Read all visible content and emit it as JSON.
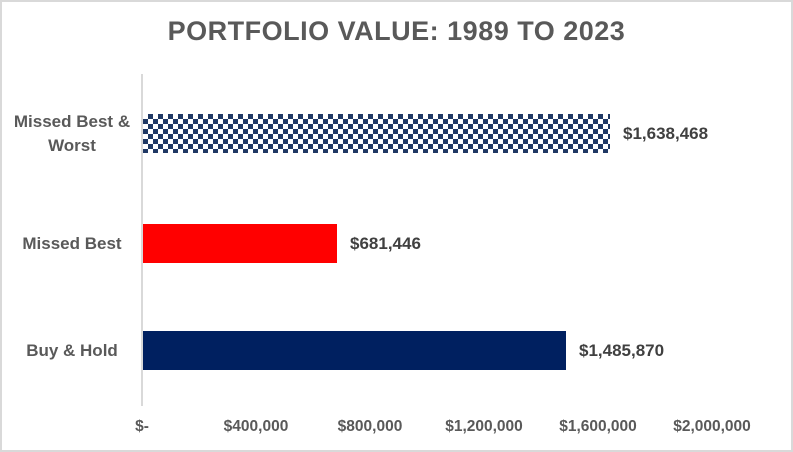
{
  "colors": {
    "border": "#d9d9d9",
    "axis_line": "#d9d9d9",
    "title_text": "#595959",
    "category_text": "#595959",
    "value_text": "#404040",
    "navy": "#002060",
    "checker_navy": "#1f3864",
    "red": "#ff0000"
  },
  "chart_data": {
    "type": "bar",
    "orientation": "horizontal",
    "title": "PORTFOLIO VALUE: 1989 TO 2023",
    "categories": [
      "Missed Best & Worst",
      "Missed Best",
      "Buy & Hold"
    ],
    "values": [
      1638468,
      681446,
      1485870
    ],
    "value_labels": [
      "$1,638,468",
      "$681,446",
      "$1,485,870"
    ],
    "bar_styles": [
      "checker-navy",
      "solid-red",
      "solid-navy"
    ],
    "x_axis": {
      "ticks": [
        "$-",
        "$400,000",
        "$800,000",
        "$1,200,000",
        "$1,600,000",
        "$2,000,000"
      ],
      "tick_values": [
        0,
        400000,
        800000,
        1200000,
        1600000,
        2000000
      ],
      "min": 0,
      "max": 2000000
    },
    "grid": false,
    "legend": false
  }
}
